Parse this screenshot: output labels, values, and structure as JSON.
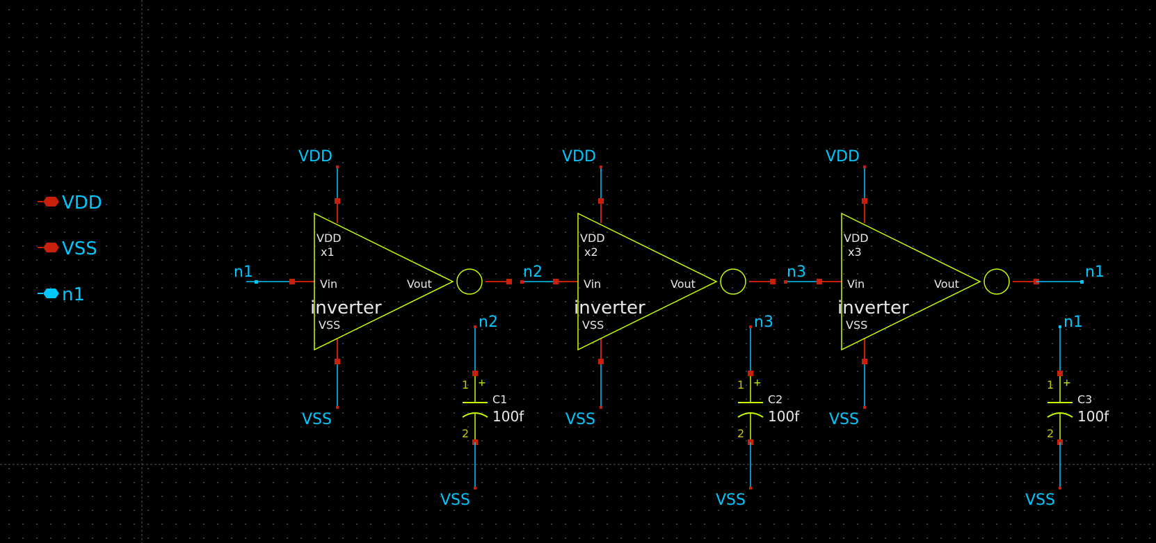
{
  "ports": [
    {
      "label": "VDD",
      "color": "#c8200a"
    },
    {
      "label": "VSS",
      "color": "#c8200a"
    },
    {
      "label": "n1",
      "color": "#00c8ff"
    }
  ],
  "inverters": [
    {
      "instance": "x1",
      "cell": "inverter",
      "pin_vdd": "VDD",
      "pin_vss": "VSS",
      "pin_in": "Vin",
      "pin_out": "Vout",
      "supply_top": "VDD",
      "supply_bottom": "VSS",
      "in_net": "n1",
      "out_net": "n2"
    },
    {
      "instance": "x2",
      "cell": "inverter",
      "pin_vdd": "VDD",
      "pin_vss": "VSS",
      "pin_in": "Vin",
      "pin_out": "Vout",
      "supply_top": "VDD",
      "supply_bottom": "VSS",
      "in_net": "n2",
      "out_net": "n3"
    },
    {
      "instance": "x3",
      "cell": "inverter",
      "pin_vdd": "VDD",
      "pin_vss": "VSS",
      "pin_in": "Vin",
      "pin_out": "Vout",
      "supply_top": "VDD",
      "supply_bottom": "VSS",
      "in_net": "n3",
      "out_net": "n1"
    }
  ],
  "capacitors": [
    {
      "name": "C1",
      "value": "100f",
      "top_net": "n2",
      "bottom_net": "VSS",
      "pin1": "1",
      "pin2": "2",
      "polarity": "+"
    },
    {
      "name": "C2",
      "value": "100f",
      "top_net": "n3",
      "bottom_net": "VSS",
      "pin1": "1",
      "pin2": "2",
      "polarity": "+"
    },
    {
      "name": "C3",
      "value": "100f",
      "top_net": "n1",
      "bottom_net": "VSS",
      "pin1": "1",
      "pin2": "2",
      "polarity": "+"
    }
  ],
  "colors": {
    "wire_net": "#00c8ff",
    "wire_pin": "#c8200a",
    "symbol": "#c8ff00",
    "pin_marker": "#c8200a",
    "grid_line": "#444444"
  }
}
